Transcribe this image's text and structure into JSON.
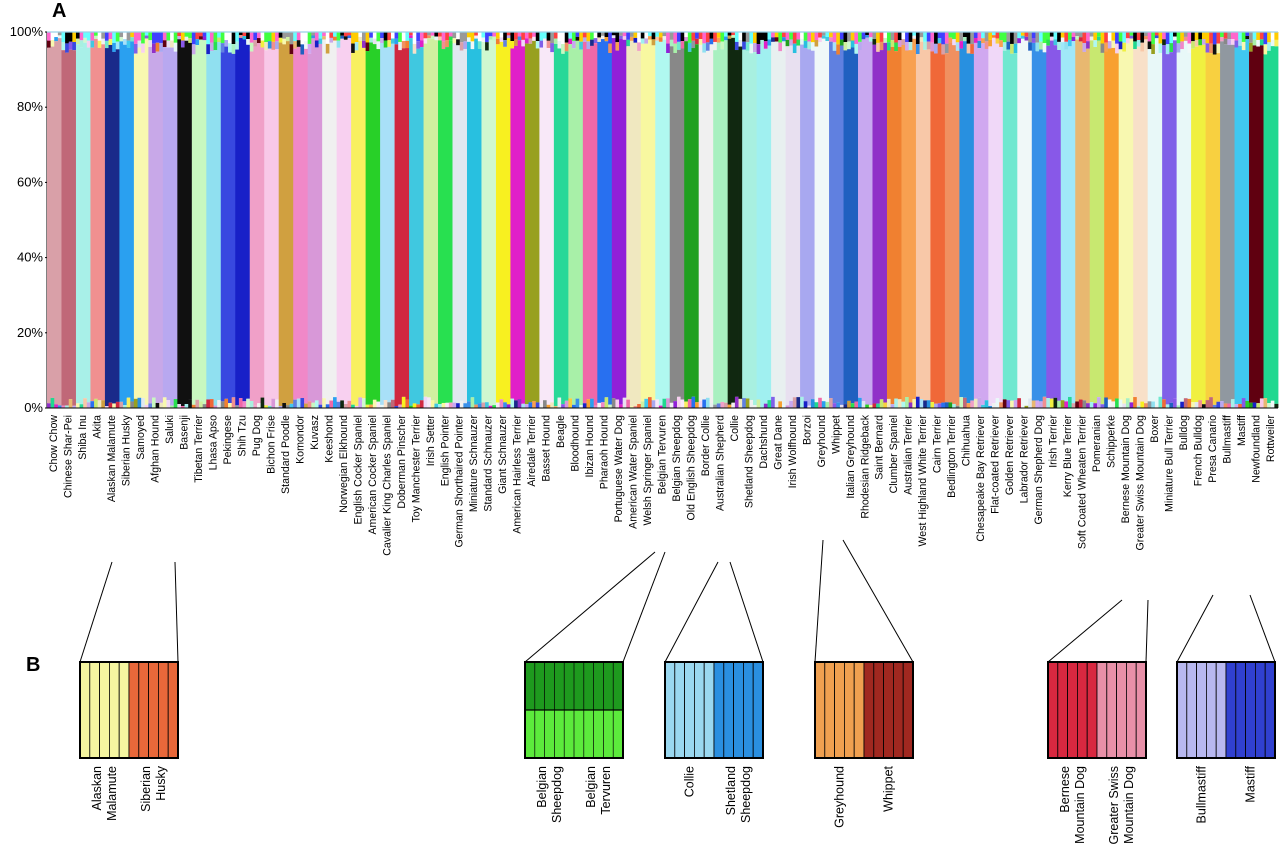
{
  "chart_data": [
    {
      "type": "bar",
      "stacked": true,
      "panel_label": "A",
      "ylim": [
        0,
        100
      ],
      "y_ticks": [
        "0%",
        "20%",
        "40%",
        "60%",
        "80%",
        "100%"
      ],
      "categories": [
        "Chow Chow",
        "Chinese Shar-Pei",
        "Shiba Inu",
        "Akita",
        "Alaskan Malamute",
        "Siberian Husky",
        "Samoyed",
        "Afghan Hound",
        "Saluki",
        "Basenji",
        "Tibetan Terrier",
        "Lhasa Apso",
        "Pekingese",
        "Shih Tzu",
        "Pug Dog",
        "Bichon Frise",
        "Standard Poodle",
        "Komondor",
        "Kuvasz",
        "Keeshond",
        "Norwegian Elkhound",
        "English Cocker Spaniel",
        "American Cocker Spaniel",
        "Cavalier King Charles Spaniel",
        "Doberman Pinscher",
        "Toy Manchester Terrier",
        "Irish Setter",
        "English Pointer",
        "German Shorthaired Pointer",
        "Miniature Schnauzer",
        "Standard Schnauzer",
        "Giant Schnauzer",
        "American Hairless Terrier",
        "Airedale Terrier",
        "Basset Hound",
        "Beagle",
        "Bloodhound",
        "Ibizan Hound",
        "Pharaoh Hound",
        "Portuguese Water Dog",
        "American Water Spaniel",
        "Welsh Springer Spaniel",
        "Belgian Tervuren",
        "Belgian Sheepdog",
        "Old English Sheepdog",
        "Border Collie",
        "Australian Shepherd",
        "Collie",
        "Shetland Sheepdog",
        "Dachshund",
        "Great Dane",
        "Irish Wolfhound",
        "Borzoi",
        "Greyhound",
        "Whippet",
        "Italian Greyhound",
        "Rhodesian Ridgeback",
        "Saint Bernard",
        "Clumber Spaniel",
        "Australian Terrier",
        "West Highland White Terrier",
        "Cairn Terrier",
        "Bedlington Terrier",
        "Chihuahua",
        "Chesapeake Bay Retriever",
        "Flat-coated Retriever",
        "Golden Retriever",
        "Labrador Retriever",
        "German Shepherd Dog",
        "Irish Terrier",
        "Kerry Blue Terrier",
        "Soft Coated Wheaten Terrier",
        "Pomeranian",
        "Schipperke",
        "Bernese Mountain Dog",
        "Greater Swiss Mountain Dog",
        "Boxer",
        "Miniature Bull Terrier",
        "Bulldog",
        "French Bulldog",
        "Presa Canario",
        "Bullmastiff",
        "Mastiff",
        "Newfoundland",
        "Rottweiler"
      ],
      "series_colors": [
        "#d9a0a8",
        "#c06878",
        "#a8f0e8",
        "#f09090",
        "#1a2a8a",
        "#2aa0f0",
        "#f8f8b0",
        "#c8a8e8",
        "#b8a8f0",
        "#101010",
        "#c8f8c0",
        "#90e0f0",
        "#3848e0",
        "#1820c8",
        "#f0a0c8",
        "#f8c8e8",
        "#d0a040",
        "#f088c8",
        "#d898d8",
        "#f0f0f0",
        "#f8d0f0",
        "#f8f060",
        "#28d028",
        "#a8e0f8",
        "#d02840",
        "#40c8e0",
        "#d0f0a0",
        "#28e050",
        "#e0e8f0",
        "#28c0e0",
        "#d0f8d0",
        "#f8f020",
        "#e020c8",
        "#98a020",
        "#f8e8f8",
        "#28d898",
        "#a8f0a8",
        "#f068a8",
        "#2870f0",
        "#9020d8",
        "#f0e8c0",
        "#f8f8a0",
        "#b0f8f0",
        "#888888",
        "#20a020",
        "#f0f0f0",
        "#a8f0c0",
        "#102810",
        "#a8f0e0",
        "#a0f0f0",
        "#e8f0f0",
        "#e8e0f0",
        "#a8a8f0",
        "#f0f8f8",
        "#6080e0",
        "#2060c0",
        "#c8a8f0",
        "#9030c8",
        "#f08030",
        "#f8a050",
        "#f8c8a8",
        "#f06838",
        "#f09060",
        "#2890e0",
        "#d0a8f0",
        "#f0d8f8",
        "#70e8d0",
        "#f0f8f8",
        "#3890e8",
        "#8858e8",
        "#a0e8f8",
        "#e8b870",
        "#c8e870",
        "#f8a030",
        "#f8f8b0",
        "#f8e0c8",
        "#e8f8f8",
        "#8060e8",
        "#e8f8f8",
        "#f0f040",
        "#f8d040",
        "#9098a0",
        "#40c8f0",
        "#600010",
        "#20d890"
      ],
      "series_note": ""
    },
    {
      "type": "bar",
      "stacked": true,
      "panel_label": "B",
      "groups": [
        {
          "labels": [
            "Alaskan Malamute",
            "Siberian Husky"
          ],
          "breed_colors": [
            "#f5f5a0",
            "#e8683a"
          ]
        },
        {
          "labels": [
            "Belgian Sheepdog",
            "Belgian Tervuren"
          ],
          "breed_colors": [
            "#1e9a1e",
            "#5cea3c"
          ],
          "split_note": ""
        },
        {
          "labels": [
            "Collie",
            "Shetland Sheepdog"
          ],
          "breed_colors": [
            "#9ad8f0",
            "#2a8fe0"
          ]
        },
        {
          "labels": [
            "Greyhound",
            "Whippet"
          ],
          "breed_colors": [
            "#f0a050",
            "#a02820"
          ]
        },
        {
          "labels": [
            "Bernese Mountain Dog",
            "Greater Swiss Mountain Dog"
          ],
          "breed_colors": [
            "#d82840",
            "#e890a8"
          ]
        },
        {
          "labels": [
            "Bullmastiff",
            "Mastiff"
          ],
          "breed_colors": [
            "#b8b8f0",
            "#3040d0"
          ]
        }
      ],
      "zoom_label_lines": [
        [
          "Alaskan",
          "Malamute"
        ],
        [
          "Siberian",
          "Husky"
        ],
        [
          "Belgian",
          "Sheepdog"
        ],
        [
          "Belgian",
          "Tervuren"
        ],
        [
          "Collie"
        ],
        [
          "Shetland",
          "Sheepdog"
        ],
        [
          "Greyhound"
        ],
        [
          "Whippet"
        ],
        [
          "Bernese",
          "Mountain Dog"
        ],
        [
          "Greater Swiss",
          "Mountain Dog"
        ],
        [
          "Bullmastiff"
        ],
        [
          "Mastiff"
        ]
      ]
    }
  ]
}
